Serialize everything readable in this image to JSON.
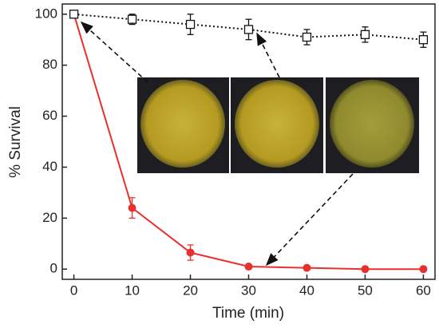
{
  "chart_data": {
    "type": "line",
    "x_label": "Time (min)",
    "y_label": "% Survival",
    "x": [
      0,
      10,
      20,
      30,
      40,
      50,
      60
    ],
    "series": [
      {
        "color": "#e8312f",
        "values": [
          100,
          24,
          6.5,
          1,
          0.5,
          0,
          0
        ],
        "errors": [
          0,
          4,
          3,
          0.5,
          0.5,
          0,
          0
        ]
      },
      {
        "color": "#111111",
        "values": [
          100,
          98,
          96,
          94,
          91,
          92,
          90
        ],
        "errors": [
          0,
          2,
          4,
          4,
          3,
          3,
          3
        ]
      }
    ],
    "xlim": [
      -2,
      62
    ],
    "ylim": [
      -4,
      104
    ],
    "xticks": [
      0,
      10,
      20,
      30,
      40,
      50,
      60
    ],
    "yticks": [
      0,
      20,
      40,
      60,
      80,
      100
    ]
  }
}
